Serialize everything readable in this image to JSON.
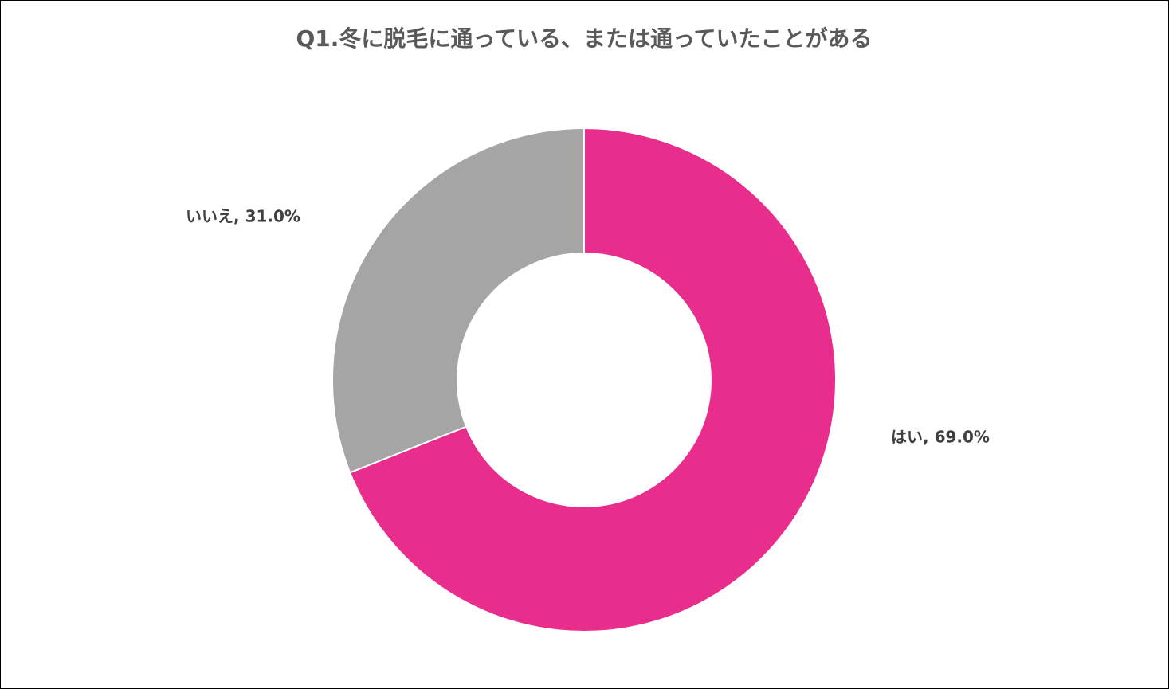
{
  "chart_data": {
    "type": "donut",
    "title": "Q1.冬に脱毛に通っている、または通っていたことがある",
    "values": [
      69.0,
      31.0
    ],
    "value_labels": [
      "はい, 69.0%",
      "いいえ, 31.0%"
    ],
    "colors": [
      "#e82d8c",
      "#a5a5a5"
    ]
  }
}
